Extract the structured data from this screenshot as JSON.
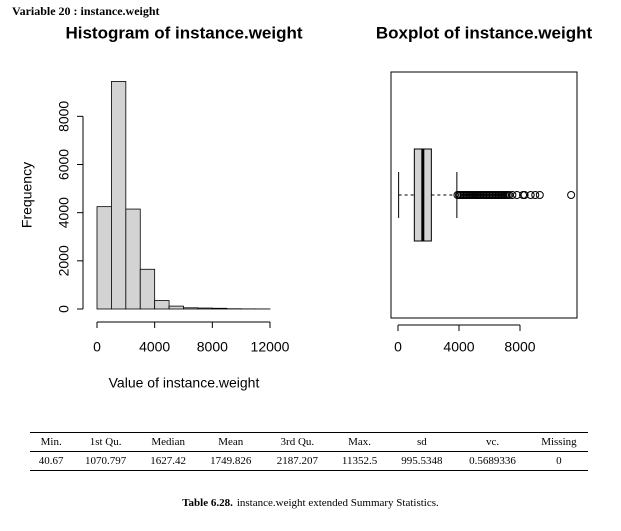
{
  "header": "Variable 20 :  instance.weight",
  "chart_data": [
    {
      "type": "histogram",
      "title": "Histogram of instance.weight",
      "x_label": "Value of instance.weight",
      "y_label": "Frequency",
      "bins": [
        0,
        1000,
        2000,
        3000,
        4000,
        5000,
        6000,
        7000,
        8000,
        9000,
        10000,
        11000,
        12000
      ],
      "counts": [
        4250,
        9450,
        4150,
        1650,
        350,
        120,
        50,
        40,
        30,
        10,
        5,
        3
      ],
      "color": "#d3d3d3",
      "xlim": [
        0,
        12000
      ],
      "xticks": [
        0,
        4000,
        8000,
        12000
      ],
      "ylim": [
        0,
        9800
      ],
      "yticks": [
        0,
        2000,
        4000,
        6000,
        8000
      ]
    },
    {
      "type": "boxplot",
      "title": "Boxplot of instance.weight",
      "orientation": "horizontal",
      "whisker_low": 40.67,
      "q1": 1070.797,
      "median": 1627.42,
      "q3": 2187.207,
      "whisker_high": 3860,
      "outliers": [
        3900,
        4000,
        4100,
        4200,
        4300,
        4400,
        4500,
        4600,
        4700,
        4800,
        4900,
        5000,
        5100,
        5200,
        5300,
        5400,
        5500,
        5600,
        5700,
        5800,
        5900,
        6000,
        6100,
        6200,
        6300,
        6400,
        6500,
        6600,
        6700,
        6800,
        6900,
        7000,
        7100,
        7200,
        7300,
        7500,
        7800,
        8200,
        8300,
        8700,
        9000,
        9300,
        11352.5
      ],
      "color": "#d3d3d3",
      "xlim": [
        -459,
        11738
      ],
      "xticks": [
        0,
        4000,
        8000
      ]
    }
  ],
  "table": {
    "header": [
      "Min.",
      "1st Qu.",
      "Median",
      "Mean",
      "3rd Qu.",
      "Max.",
      "sd",
      "vc.",
      "Missing"
    ],
    "rows": [
      [
        "40.67",
        "1070.797",
        "1627.42",
        "1749.826",
        "2187.207",
        "11352.5",
        "995.5348",
        "0.5689336",
        "0"
      ]
    ]
  },
  "caption": {
    "label": "Table 6.28.",
    "text": "instance.weight extended Summary Statistics."
  }
}
